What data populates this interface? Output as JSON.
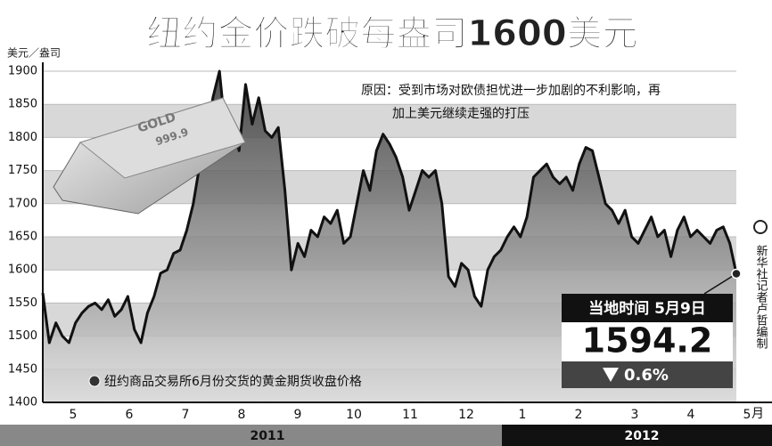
{
  "chart_data": {
    "type": "area-line",
    "title": "纽约金价跌破每盎司1600美元",
    "y_label": "美元／盎司",
    "annotation_lines": [
      "原因：受到市场对欧债担忧进一步加剧的不利影响，再",
      "加上美元继续走强的打压"
    ],
    "legend": "纽约商品交易所6月份交货的黄金期货收盘价格",
    "callout_date": "当地时间 5月9日",
    "change_label": "0.6%",
    "credit": "新华社记者卢哲编制",
    "gold_bar_text": [
      "GOLD",
      "999.9"
    ],
    "x_labels": [
      "5",
      "6",
      "7",
      "8",
      "9",
      "10",
      "11",
      "12",
      "1",
      "2",
      "3",
      "4",
      "5"
    ],
    "x_unit": "月",
    "years": [
      "2011",
      "2012"
    ],
    "color": "#111111",
    "ylim": [
      1400,
      1900
    ],
    "yticks": [
      1400,
      1450,
      1500,
      1550,
      1600,
      1650,
      1700,
      1750,
      1800,
      1850,
      1900
    ],
    "values": [
      1565,
      1490,
      1520,
      1500,
      1490,
      1520,
      1535,
      1545,
      1550,
      1540,
      1555,
      1530,
      1540,
      1560,
      1510,
      1490,
      1535,
      1560,
      1595,
      1600,
      1625,
      1630,
      1660,
      1700,
      1760,
      1780,
      1860,
      1900,
      1800,
      1820,
      1780,
      1880,
      1820,
      1860,
      1810,
      1800,
      1815,
      1720,
      1600,
      1640,
      1620,
      1660,
      1650,
      1680,
      1670,
      1690,
      1640,
      1650,
      1700,
      1750,
      1720,
      1780,
      1805,
      1790,
      1770,
      1740,
      1690,
      1720,
      1750,
      1740,
      1750,
      1700,
      1590,
      1575,
      1610,
      1600,
      1560,
      1545,
      1600,
      1620,
      1630,
      1650,
      1665,
      1650,
      1680,
      1740,
      1750,
      1760,
      1740,
      1730,
      1740,
      1720,
      1760,
      1785,
      1780,
      1740,
      1700,
      1690,
      1670,
      1690,
      1650,
      1640,
      1660,
      1680,
      1650,
      1660,
      1620,
      1660,
      1680,
      1650,
      1660,
      1650,
      1640,
      1660,
      1665,
      1640,
      1594.2
    ]
  }
}
